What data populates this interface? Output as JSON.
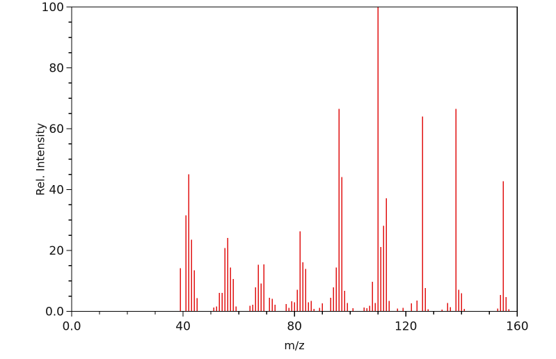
{
  "figure": {
    "background": "#ffffff",
    "frame_color": "#000000",
    "text_color": "#111111"
  },
  "chart_data": {
    "type": "bar",
    "subtype": "mass-spectrum-stick-plot",
    "title": "",
    "xlabel": "m/z",
    "ylabel": "Rel. Intensity",
    "xlim": [
      0,
      160
    ],
    "ylim": [
      0,
      100
    ],
    "grid": false,
    "legend": null,
    "bar_color": "#e01010",
    "x_major_ticks": [
      0,
      40,
      80,
      120,
      160
    ],
    "x_major_tick_labels": [
      "0.0",
      "40",
      "80",
      "120",
      "160"
    ],
    "x_minor_step": 10,
    "y_major_ticks": [
      0,
      20,
      40,
      60,
      80,
      100
    ],
    "y_major_tick_labels": [
      "0.0",
      "20",
      "40",
      "60",
      "80",
      "100"
    ],
    "y_minor_step": 5,
    "peaks": [
      [
        39,
        14.2
      ],
      [
        41,
        31.5
      ],
      [
        42,
        45.0
      ],
      [
        43,
        23.5
      ],
      [
        44,
        13.5
      ],
      [
        45,
        4.3
      ],
      [
        51,
        1.3
      ],
      [
        52,
        1.6
      ],
      [
        53,
        6.1
      ],
      [
        54,
        6.1
      ],
      [
        55,
        20.8
      ],
      [
        56,
        24.1
      ],
      [
        57,
        14.4
      ],
      [
        58,
        10.6
      ],
      [
        59,
        1.6
      ],
      [
        64,
        1.8
      ],
      [
        65,
        2.2
      ],
      [
        66,
        7.9
      ],
      [
        67,
        15.3
      ],
      [
        68,
        9.1
      ],
      [
        69,
        15.4
      ],
      [
        71,
        4.5
      ],
      [
        72,
        4.1
      ],
      [
        73,
        2.2
      ],
      [
        77,
        2.4
      ],
      [
        78,
        1.2
      ],
      [
        79,
        3.3
      ],
      [
        80,
        3.0
      ],
      [
        81,
        7.1
      ],
      [
        82,
        26.3
      ],
      [
        83,
        16.1
      ],
      [
        84,
        14.0
      ],
      [
        85,
        3.0
      ],
      [
        86,
        3.4
      ],
      [
        87,
        0.8
      ],
      [
        89,
        1.1
      ],
      [
        90,
        2.6
      ],
      [
        93,
        4.5
      ],
      [
        94,
        7.9
      ],
      [
        95,
        14.4
      ],
      [
        96,
        66.5
      ],
      [
        97,
        44.1
      ],
      [
        98,
        6.8
      ],
      [
        99,
        2.7
      ],
      [
        101,
        1.0
      ],
      [
        105,
        1.3
      ],
      [
        106,
        1.0
      ],
      [
        107,
        1.8
      ],
      [
        108,
        9.7
      ],
      [
        109,
        2.7
      ],
      [
        110,
        100.0
      ],
      [
        111,
        21.2
      ],
      [
        112,
        28.1
      ],
      [
        113,
        37.2
      ],
      [
        114,
        3.4
      ],
      [
        117,
        0.9
      ],
      [
        119,
        1.1
      ],
      [
        122,
        2.6
      ],
      [
        124,
        3.6
      ],
      [
        126,
        64.0
      ],
      [
        127,
        7.7
      ],
      [
        128,
        0.7
      ],
      [
        133,
        0.6
      ],
      [
        135,
        2.8
      ],
      [
        136,
        1.4
      ],
      [
        138,
        66.5
      ],
      [
        139,
        7.1
      ],
      [
        140,
        6.0
      ],
      [
        141,
        0.8
      ],
      [
        153,
        0.9
      ],
      [
        154,
        5.4
      ],
      [
        155,
        42.7
      ],
      [
        156,
        4.7
      ],
      [
        157,
        0.7
      ]
    ]
  }
}
